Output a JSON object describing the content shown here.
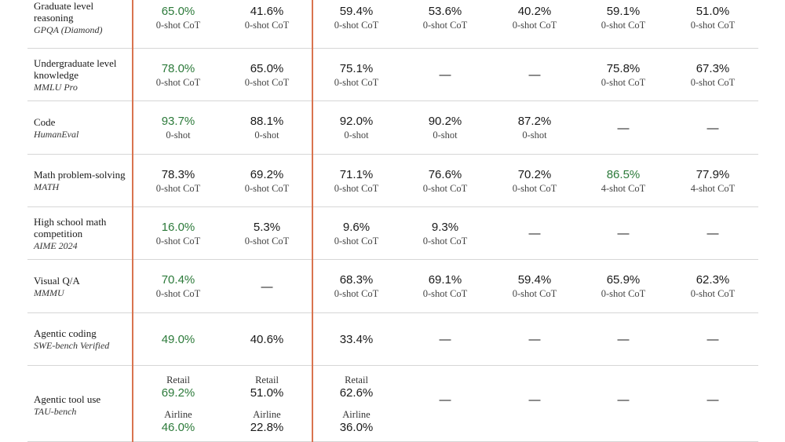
{
  "rows": [
    {
      "name": "Graduate level reasoning",
      "bench": "GPQA (Diamond)",
      "cells": [
        {
          "v": "65.0%",
          "s": "0-shot CoT",
          "green": true
        },
        {
          "v": "41.6%",
          "s": "0-shot CoT"
        },
        {
          "v": "59.4%",
          "s": "0-shot CoT"
        },
        {
          "v": "53.6%",
          "s": "0-shot CoT"
        },
        {
          "v": "40.2%",
          "s": "0-shot CoT"
        },
        {
          "v": "59.1%",
          "s": "0-shot CoT"
        },
        {
          "v": "51.0%",
          "s": "0-shot CoT"
        }
      ]
    },
    {
      "name": "Undergraduate level knowledge",
      "bench": "MMLU Pro",
      "cells": [
        {
          "v": "78.0%",
          "s": "0-shot CoT",
          "green": true
        },
        {
          "v": "65.0%",
          "s": "0-shot CoT"
        },
        {
          "v": "75.1%",
          "s": "0-shot CoT"
        },
        {
          "dash": "—"
        },
        {
          "dash": "—"
        },
        {
          "v": "75.8%",
          "s": "0-shot CoT"
        },
        {
          "v": "67.3%",
          "s": "0-shot CoT"
        }
      ]
    },
    {
      "name": "Code",
      "bench": "HumanEval",
      "cells": [
        {
          "v": "93.7%",
          "s": "0-shot",
          "green": true
        },
        {
          "v": "88.1%",
          "s": "0-shot"
        },
        {
          "v": "92.0%",
          "s": "0-shot"
        },
        {
          "v": "90.2%",
          "s": "0-shot"
        },
        {
          "v": "87.2%",
          "s": "0-shot"
        },
        {
          "dash": "—"
        },
        {
          "dash": "—"
        }
      ]
    },
    {
      "name": "Math problem-solving",
      "bench": "MATH",
      "cells": [
        {
          "v": "78.3%",
          "s": "0-shot CoT"
        },
        {
          "v": "69.2%",
          "s": "0-shot CoT"
        },
        {
          "v": "71.1%",
          "s": "0-shot CoT"
        },
        {
          "v": "76.6%",
          "s": "0-shot CoT"
        },
        {
          "v": "70.2%",
          "s": "0-shot CoT"
        },
        {
          "v": "86.5%",
          "s": "4-shot CoT",
          "green": true
        },
        {
          "v": "77.9%",
          "s": "4-shot CoT"
        }
      ]
    },
    {
      "name": "High school math competition",
      "bench": "AIME 2024",
      "cells": [
        {
          "v": "16.0%",
          "s": "0-shot CoT",
          "green": true
        },
        {
          "v": "5.3%",
          "s": "0-shot CoT"
        },
        {
          "v": "9.6%",
          "s": "0-shot CoT"
        },
        {
          "v": "9.3%",
          "s": "0-shot CoT"
        },
        {
          "dash": "—"
        },
        {
          "dash": "—"
        },
        {
          "dash": "—"
        }
      ]
    },
    {
      "name": "Visual Q/A",
      "bench": "MMMU",
      "cells": [
        {
          "v": "70.4%",
          "s": "0-shot CoT",
          "green": true
        },
        {
          "dash": "—"
        },
        {
          "v": "68.3%",
          "s": "0-shot CoT"
        },
        {
          "v": "69.1%",
          "s": "0-shot CoT"
        },
        {
          "v": "59.4%",
          "s": "0-shot CoT"
        },
        {
          "v": "65.9%",
          "s": "0-shot CoT"
        },
        {
          "v": "62.3%",
          "s": "0-shot CoT"
        }
      ]
    },
    {
      "name": "Agentic coding",
      "bench": "SWE-bench Verified",
      "cells": [
        {
          "v": "49.0%",
          "green": true
        },
        {
          "v": "40.6%"
        },
        {
          "v": "33.4%"
        },
        {
          "dash": "—"
        },
        {
          "dash": "—"
        },
        {
          "dash": "—"
        },
        {
          "dash": "—"
        }
      ]
    },
    {
      "name": "Agentic tool use",
      "bench": "TAU-bench",
      "cells": [
        {
          "parts": [
            {
              "c": "Retail",
              "v": "69.2%"
            },
            {
              "c": "Airline",
              "v": "46.0%"
            }
          ],
          "green": true
        },
        {
          "parts": [
            {
              "c": "Retail",
              "v": "51.0%"
            },
            {
              "c": "Airline",
              "v": "22.8%"
            }
          ]
        },
        {
          "parts": [
            {
              "c": "Retail",
              "v": "62.6%"
            },
            {
              "c": "Airline",
              "v": "36.0%"
            }
          ]
        },
        {
          "dash": "—"
        },
        {
          "dash": "—"
        },
        {
          "dash": "—"
        },
        {
          "dash": "—"
        }
      ]
    }
  ]
}
